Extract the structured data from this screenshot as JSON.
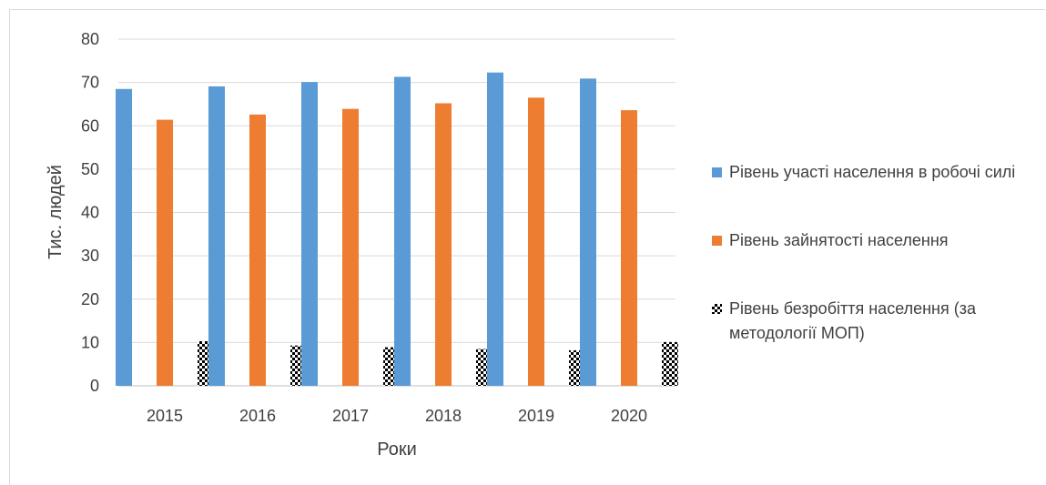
{
  "chart_data": {
    "type": "bar",
    "categories": [
      "2015",
      "2016",
      "2017",
      "2018",
      "2019",
      "2020"
    ],
    "series": [
      {
        "name": "Рівень участі населення в робочі силі",
        "color": "#5b9bd5",
        "pattern": "solid",
        "values": [
          68.5,
          69.1,
          70.1,
          71.3,
          72.3,
          70.9
        ]
      },
      {
        "name": "Рівень зайнятості населення",
        "color": "#ed7d31",
        "pattern": "solid",
        "values": [
          61.4,
          62.6,
          63.9,
          65.2,
          66.5,
          63.6
        ]
      },
      {
        "name": "Рівень безробіття населення (за методології МОП)",
        "color": "#000000",
        "pattern": "checkerboard",
        "values": [
          10.3,
          9.3,
          8.9,
          8.5,
          8.2,
          10.1
        ]
      }
    ],
    "yticks": [
      "0",
      "10",
      "20",
      "30",
      "40",
      "50",
      "60",
      "70",
      "80"
    ],
    "ylim": [
      0,
      80
    ],
    "xlabel": "Роки",
    "ylabel": "Тис. людей",
    "grid": true,
    "legend_position": "right"
  }
}
